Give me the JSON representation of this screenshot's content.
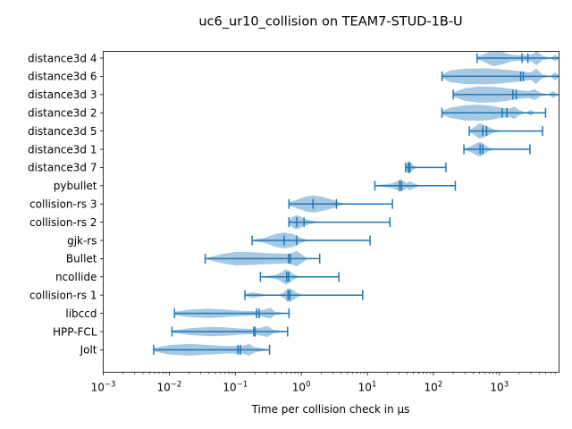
{
  "chart_data": {
    "type": "violin",
    "title": "uc6_ur10_collision on TEAM7-STUD-1B-U",
    "xlabel": "Time per collision check in µs",
    "ylabel": "",
    "xscale": "log",
    "xlim": [
      0.001,
      8000
    ],
    "xticks": [
      {
        "value": 0.001,
        "base": "10",
        "exp": "−3"
      },
      {
        "value": 0.01,
        "base": "10",
        "exp": "−2"
      },
      {
        "value": 0.1,
        "base": "10",
        "exp": "−1"
      },
      {
        "value": 1,
        "base": "10",
        "exp": "0"
      },
      {
        "value": 10,
        "base": "10",
        "exp": "1"
      },
      {
        "value": 100,
        "base": "10",
        "exp": "2"
      },
      {
        "value": 1000,
        "base": "10",
        "exp": "3"
      }
    ],
    "color": "#1f77b4",
    "fill_color": "#a6c8e3",
    "series": [
      {
        "name": "distance3d 4",
        "min": 460,
        "max": 9500,
        "mean": 2700,
        "median": 2200,
        "density": [
          [
            460,
            0.15
          ],
          [
            600,
            0.5
          ],
          [
            800,
            0.95
          ],
          [
            1100,
            0.75
          ],
          [
            1500,
            0.4
          ],
          [
            2200,
            0.3
          ],
          [
            3000,
            0.4
          ],
          [
            3700,
            0.8
          ],
          [
            4500,
            0.25
          ],
          [
            6000,
            0.05
          ],
          [
            7000,
            0.4
          ],
          [
            8000,
            0.05
          ],
          [
            9500,
            0.02
          ]
        ]
      },
      {
        "name": "distance3d 6",
        "min": 135,
        "max": 9500,
        "mean": 2300,
        "median": 2100,
        "density": [
          [
            135,
            0.2
          ],
          [
            180,
            0.7
          ],
          [
            300,
            0.9
          ],
          [
            600,
            0.95
          ],
          [
            1000,
            0.85
          ],
          [
            1600,
            0.7
          ],
          [
            2200,
            0.55
          ],
          [
            3000,
            0.45
          ],
          [
            3600,
            0.9
          ],
          [
            4500,
            0.2
          ],
          [
            6000,
            0.05
          ],
          [
            7000,
            0.5
          ],
          [
            8000,
            0.1
          ],
          [
            9500,
            0.05
          ]
        ]
      },
      {
        "name": "distance3d 3",
        "min": 200,
        "max": 9500,
        "mean": 1800,
        "median": 1600,
        "density": [
          [
            200,
            0.25
          ],
          [
            300,
            0.75
          ],
          [
            500,
            0.95
          ],
          [
            900,
            0.9
          ],
          [
            1400,
            0.7
          ],
          [
            2000,
            0.5
          ],
          [
            2800,
            0.4
          ],
          [
            3400,
            0.65
          ],
          [
            4200,
            0.2
          ],
          [
            5500,
            0.05
          ],
          [
            6500,
            0.4
          ],
          [
            7500,
            0.1
          ],
          [
            9500,
            0.05
          ]
        ]
      },
      {
        "name": "distance3d 2",
        "min": 135,
        "max": 5000,
        "mean": 1300,
        "median": 1100,
        "density": [
          [
            135,
            0.2
          ],
          [
            180,
            0.6
          ],
          [
            300,
            0.9
          ],
          [
            500,
            0.95
          ],
          [
            800,
            0.8
          ],
          [
            1100,
            0.55
          ],
          [
            1400,
            0.5
          ],
          [
            1700,
            0.7
          ],
          [
            2000,
            0.3
          ],
          [
            2500,
            0.05
          ],
          [
            3000,
            0.35
          ],
          [
            3400,
            0.05
          ],
          [
            5000,
            0.02
          ]
        ]
      },
      {
        "name": "distance3d 5",
        "min": 350,
        "max": 4500,
        "mean": 640,
        "median": 560,
        "density": [
          [
            350,
            0.1
          ],
          [
            420,
            0.5
          ],
          [
            500,
            0.9
          ],
          [
            580,
            0.75
          ],
          [
            700,
            0.45
          ],
          [
            850,
            0.15
          ],
          [
            1100,
            0.05
          ],
          [
            4500,
            0.01
          ]
        ]
      },
      {
        "name": "distance3d 1",
        "min": 290,
        "max": 2900,
        "mean": 560,
        "median": 510,
        "density": [
          [
            290,
            0.05
          ],
          [
            380,
            0.4
          ],
          [
            460,
            0.75
          ],
          [
            520,
            0.85
          ],
          [
            600,
            0.5
          ],
          [
            700,
            0.2
          ],
          [
            850,
            0.05
          ],
          [
            2900,
            0.01
          ]
        ]
      },
      {
        "name": "distance3d 7",
        "min": 38,
        "max": 155,
        "mean": 44,
        "median": 42,
        "density": [
          [
            38,
            0.2
          ],
          [
            40,
            0.5
          ],
          [
            42,
            0.8
          ],
          [
            45,
            0.6
          ],
          [
            49,
            0.3
          ],
          [
            55,
            0.05
          ],
          [
            155,
            0.01
          ]
        ]
      },
      {
        "name": "pybullet",
        "min": 13,
        "max": 215,
        "mean": 33,
        "median": 31,
        "density": [
          [
            13,
            0.05
          ],
          [
            18,
            0.15
          ],
          [
            24,
            0.3
          ],
          [
            28,
            0.5
          ],
          [
            31,
            0.75
          ],
          [
            35,
            0.55
          ],
          [
            40,
            0.3
          ],
          [
            44,
            0.55
          ],
          [
            50,
            0.3
          ],
          [
            60,
            0.08
          ],
          [
            80,
            0.02
          ],
          [
            215,
            0.01
          ]
        ]
      },
      {
        "name": "collision-rs 3",
        "min": 0.65,
        "max": 24,
        "mean": 3.4,
        "median": 1.5,
        "density": [
          [
            0.65,
            0.2
          ],
          [
            0.85,
            0.5
          ],
          [
            1.2,
            0.9
          ],
          [
            1.6,
            1.0
          ],
          [
            2.2,
            0.8
          ],
          [
            3.0,
            0.5
          ],
          [
            3.8,
            0.15
          ],
          [
            5,
            0.05
          ],
          [
            24,
            0.01
          ]
        ]
      },
      {
        "name": "collision-rs 2",
        "min": 0.65,
        "max": 22,
        "mean": 1.1,
        "median": 0.85,
        "density": [
          [
            0.65,
            0.25
          ],
          [
            0.75,
            0.65
          ],
          [
            0.85,
            0.85
          ],
          [
            0.95,
            0.7
          ],
          [
            1.1,
            0.4
          ],
          [
            1.4,
            0.2
          ],
          [
            1.8,
            0.05
          ],
          [
            22,
            0.01
          ]
        ]
      },
      {
        "name": "gjk-rs",
        "min": 0.18,
        "max": 11,
        "mean": 0.85,
        "median": 0.55,
        "density": [
          [
            0.18,
            0.05
          ],
          [
            0.28,
            0.3
          ],
          [
            0.4,
            0.75
          ],
          [
            0.55,
            0.95
          ],
          [
            0.75,
            0.75
          ],
          [
            0.95,
            0.35
          ],
          [
            1.2,
            0.1
          ],
          [
            2,
            0.02
          ],
          [
            11,
            0.01
          ]
        ]
      },
      {
        "name": "Bullet",
        "min": 0.035,
        "max": 1.9,
        "mean": 0.68,
        "median": 0.64,
        "density": [
          [
            0.035,
            0.05
          ],
          [
            0.06,
            0.5
          ],
          [
            0.1,
            0.8
          ],
          [
            0.18,
            0.75
          ],
          [
            0.3,
            0.65
          ],
          [
            0.45,
            0.6
          ],
          [
            0.65,
            0.55
          ],
          [
            0.85,
            0.9
          ],
          [
            1.0,
            0.55
          ],
          [
            1.2,
            0.1
          ],
          [
            1.9,
            0.02
          ]
        ]
      },
      {
        "name": "ncollide",
        "min": 0.24,
        "max": 3.7,
        "mean": 0.64,
        "median": 0.6,
        "density": [
          [
            0.24,
            0.02
          ],
          [
            0.4,
            0.2
          ],
          [
            0.5,
            0.55
          ],
          [
            0.58,
            0.9
          ],
          [
            0.66,
            0.7
          ],
          [
            0.75,
            0.35
          ],
          [
            0.9,
            0.08
          ],
          [
            3.7,
            0.01
          ]
        ]
      },
      {
        "name": "collision-rs 1",
        "min": 0.14,
        "max": 8.5,
        "mean": 0.67,
        "median": 0.63,
        "density": [
          [
            0.14,
            0.1
          ],
          [
            0.18,
            0.35
          ],
          [
            0.23,
            0.2
          ],
          [
            0.3,
            0.04
          ],
          [
            0.45,
            0.02
          ],
          [
            0.55,
            0.35
          ],
          [
            0.62,
            0.8
          ],
          [
            0.7,
            0.75
          ],
          [
            0.85,
            0.3
          ],
          [
            1.0,
            0.05
          ],
          [
            8.5,
            0.01
          ]
        ]
      },
      {
        "name": "libccd",
        "min": 0.012,
        "max": 0.65,
        "mean": 0.23,
        "median": 0.21,
        "density": [
          [
            0.012,
            0.2
          ],
          [
            0.02,
            0.45
          ],
          [
            0.04,
            0.55
          ],
          [
            0.07,
            0.45
          ],
          [
            0.12,
            0.3
          ],
          [
            0.2,
            0.25
          ],
          [
            0.28,
            0.45
          ],
          [
            0.34,
            0.65
          ],
          [
            0.4,
            0.2
          ],
          [
            0.65,
            0.02
          ]
        ]
      },
      {
        "name": "HPP-FCL",
        "min": 0.011,
        "max": 0.62,
        "mean": 0.2,
        "median": 0.19,
        "density": [
          [
            0.011,
            0.15
          ],
          [
            0.02,
            0.4
          ],
          [
            0.04,
            0.55
          ],
          [
            0.07,
            0.5
          ],
          [
            0.12,
            0.35
          ],
          [
            0.19,
            0.3
          ],
          [
            0.25,
            0.5
          ],
          [
            0.31,
            0.65
          ],
          [
            0.38,
            0.2
          ],
          [
            0.62,
            0.02
          ]
        ]
      },
      {
        "name": "Jolt",
        "min": 0.0058,
        "max": 0.33,
        "mean": 0.12,
        "median": 0.11,
        "density": [
          [
            0.0058,
            0.2
          ],
          [
            0.01,
            0.55
          ],
          [
            0.02,
            0.7
          ],
          [
            0.04,
            0.55
          ],
          [
            0.07,
            0.45
          ],
          [
            0.1,
            0.45
          ],
          [
            0.13,
            0.45
          ],
          [
            0.16,
            0.7
          ],
          [
            0.2,
            0.3
          ],
          [
            0.33,
            0.02
          ]
        ]
      }
    ]
  }
}
